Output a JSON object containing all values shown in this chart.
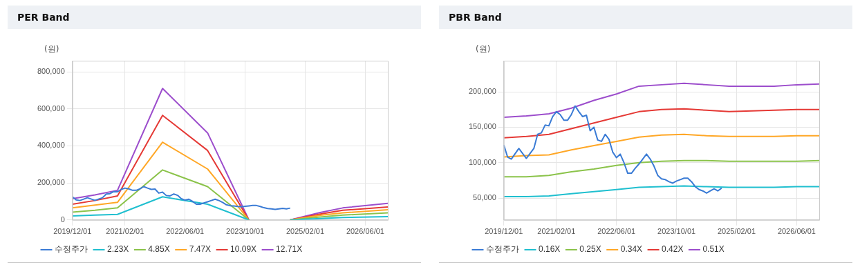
{
  "chart_data": [
    {
      "type": "line",
      "title": "PER Band",
      "ylabel": "(원)",
      "xlim": [
        "2019-12",
        "2026-12"
      ],
      "xticks": [
        {
          "value": "2019-12",
          "label": "2019/12/01"
        },
        {
          "value": "2021-02",
          "label": "2021/02/01"
        },
        {
          "value": "2022-06",
          "label": "2022/06/01"
        },
        {
          "value": "2023-10",
          "label": "2023/10/01"
        },
        {
          "value": "2025-02",
          "label": "2025/02/01"
        },
        {
          "value": "2026-06",
          "label": "2026/06/01"
        }
      ],
      "ylim": [
        0,
        860000
      ],
      "yticks": [
        {
          "value": 0,
          "label": "0"
        },
        {
          "value": 200000,
          "label": "200,000"
        },
        {
          "value": 400000,
          "label": "400,000"
        },
        {
          "value": 600000,
          "label": "600,000"
        },
        {
          "value": 800000,
          "label": "800,000"
        }
      ],
      "grid": true,
      "legend": "bottom",
      "marker": "none",
      "line_style": "solid",
      "series": [
        {
          "name": "수정주가",
          "color": "#3a7bd5",
          "x": [
            "2019-12",
            "2020-01",
            "2020-02",
            "2020-04",
            "2020-06",
            "2020-08",
            "2020-09",
            "2020-10",
            "2020-11",
            "2020-12",
            "2021-01",
            "2021-02",
            "2021-03",
            "2021-04",
            "2021-05",
            "2021-06",
            "2021-07",
            "2021-08",
            "2021-09",
            "2021-10",
            "2021-11",
            "2021-12",
            "2022-01",
            "2022-02",
            "2022-03",
            "2022-04",
            "2022-05",
            "2022-06",
            "2022-07",
            "2022-08",
            "2022-09",
            "2022-10",
            "2022-11",
            "2022-12",
            "2023-01",
            "2023-02",
            "2023-03",
            "2023-04",
            "2023-05",
            "2023-06",
            "2023-07",
            "2023-08",
            "2023-09",
            "2023-10",
            "2023-11",
            "2023-12",
            "2024-01",
            "2024-02",
            "2024-03",
            "2024-04",
            "2024-05",
            "2024-06",
            "2024-07",
            "2024-08",
            "2024-09",
            "2024-10"
          ],
          "values": [
            125000,
            108000,
            105000,
            120000,
            106000,
            120000,
            140000,
            142000,
            153000,
            152000,
            165000,
            172000,
            168000,
            160000,
            160000,
            168000,
            180000,
            172000,
            165000,
            167000,
            145000,
            150000,
            132000,
            130000,
            140000,
            133000,
            115000,
            107000,
            112000,
            100000,
            85000,
            85000,
            92000,
            98000,
            105000,
            112000,
            105000,
            95000,
            82000,
            77000,
            76000,
            73000,
            71000,
            74000,
            76000,
            78000,
            78000,
            73000,
            66000,
            62000,
            60000,
            57000,
            60000,
            63000,
            60000,
            64000
          ]
        },
        {
          "name": "2.23X",
          "color": "#1fbfcf",
          "x": [
            "2019-12",
            "2020-06",
            "2020-12",
            "2021-12",
            "2022-12",
            "2023-11",
            "2024-04",
            "2024-10",
            "2025-06",
            "2025-12",
            "2026-12"
          ],
          "values": [
            22000,
            26000,
            30000,
            125000,
            85000,
            0,
            null,
            0,
            8000,
            13000,
            18000
          ]
        },
        {
          "name": "4.85X",
          "color": "#8bc34a",
          "x": [
            "2019-12",
            "2020-06",
            "2020-12",
            "2021-12",
            "2022-12",
            "2023-11",
            "2024-04",
            "2024-10",
            "2025-06",
            "2025-12",
            "2026-12"
          ],
          "values": [
            42000,
            52000,
            65000,
            270000,
            180000,
            0,
            null,
            0,
            16000,
            26000,
            38000
          ]
        },
        {
          "name": "7.47X",
          "color": "#ffa726",
          "x": [
            "2019-12",
            "2020-06",
            "2020-12",
            "2021-12",
            "2022-12",
            "2023-11",
            "2024-04",
            "2024-10",
            "2025-06",
            "2025-12",
            "2026-12"
          ],
          "values": [
            65000,
            80000,
            95000,
            420000,
            275000,
            0,
            null,
            0,
            25000,
            38000,
            55000
          ]
        },
        {
          "name": "10.09X",
          "color": "#e53935",
          "x": [
            "2019-12",
            "2020-06",
            "2020-12",
            "2021-12",
            "2022-12",
            "2023-11",
            "2024-04",
            "2024-10",
            "2025-06",
            "2025-12",
            "2026-12"
          ],
          "values": [
            85000,
            105000,
            130000,
            565000,
            375000,
            0,
            null,
            0,
            32000,
            52000,
            70000
          ]
        },
        {
          "name": "12.71X",
          "color": "#9c4dcc",
          "x": [
            "2019-12",
            "2020-06",
            "2020-12",
            "2021-12",
            "2022-12",
            "2023-11",
            "2024-04",
            "2024-10",
            "2025-06",
            "2025-12",
            "2026-12"
          ],
          "values": [
            115000,
            135000,
            160000,
            710000,
            470000,
            0,
            null,
            0,
            40000,
            65000,
            90000
          ]
        }
      ]
    },
    {
      "type": "line",
      "title": "PBR Band",
      "ylabel": "(원)",
      "xlim": [
        "2019-12",
        "2026-12"
      ],
      "xticks": [
        {
          "value": "2019-12",
          "label": "2019/12/01"
        },
        {
          "value": "2021-02",
          "label": "2021/02/01"
        },
        {
          "value": "2022-06",
          "label": "2022/06/01"
        },
        {
          "value": "2023-10",
          "label": "2023/10/01"
        },
        {
          "value": "2025-02",
          "label": "2025/02/01"
        },
        {
          "value": "2026-06",
          "label": "2026/06/01"
        }
      ],
      "ylim": [
        19000,
        244000
      ],
      "yticks": [
        {
          "value": 50000,
          "label": "50,000"
        },
        {
          "value": 100000,
          "label": "100,000"
        },
        {
          "value": 150000,
          "label": "150,000"
        },
        {
          "value": 200000,
          "label": "200,000"
        }
      ],
      "grid": true,
      "legend": "bottom",
      "marker": "none",
      "line_style": "solid",
      "series": [
        {
          "name": "수정주가",
          "color": "#3a7bd5",
          "x": [
            "2019-12",
            "2020-01",
            "2020-02",
            "2020-04",
            "2020-06",
            "2020-08",
            "2020-09",
            "2020-10",
            "2020-11",
            "2020-12",
            "2021-01",
            "2021-02",
            "2021-03",
            "2021-04",
            "2021-05",
            "2021-06",
            "2021-07",
            "2021-08",
            "2021-09",
            "2021-10",
            "2021-11",
            "2021-12",
            "2022-01",
            "2022-02",
            "2022-03",
            "2022-04",
            "2022-05",
            "2022-06",
            "2022-07",
            "2022-08",
            "2022-09",
            "2022-10",
            "2022-11",
            "2022-12",
            "2023-01",
            "2023-02",
            "2023-03",
            "2023-04",
            "2023-05",
            "2023-06",
            "2023-07",
            "2023-08",
            "2023-09",
            "2023-10",
            "2023-11",
            "2023-12",
            "2024-01",
            "2024-02",
            "2024-03",
            "2024-04",
            "2024-05",
            "2024-06",
            "2024-07",
            "2024-08",
            "2024-09",
            "2024-10"
          ],
          "values": [
            125000,
            108000,
            105000,
            120000,
            106000,
            120000,
            140000,
            142000,
            153000,
            152000,
            165000,
            172000,
            168000,
            160000,
            160000,
            168000,
            180000,
            172000,
            165000,
            167000,
            145000,
            150000,
            132000,
            130000,
            140000,
            133000,
            115000,
            107000,
            112000,
            100000,
            85000,
            85000,
            92000,
            98000,
            105000,
            112000,
            105000,
            95000,
            82000,
            77000,
            76000,
            73000,
            71000,
            74000,
            76000,
            78000,
            78000,
            73000,
            66000,
            62000,
            60000,
            57000,
            60000,
            63000,
            60000,
            64000
          ]
        },
        {
          "name": "0.16X",
          "color": "#1fbfcf",
          "x": [
            "2019-12",
            "2020-06",
            "2020-12",
            "2021-06",
            "2021-12",
            "2022-06",
            "2022-12",
            "2023-06",
            "2023-12",
            "2024-06",
            "2024-12",
            "2025-12",
            "2026-06",
            "2026-12"
          ],
          "values": [
            52000,
            52000,
            53000,
            56000,
            59000,
            62000,
            65000,
            66000,
            67000,
            66000,
            65000,
            65000,
            66000,
            66000
          ]
        },
        {
          "name": "0.25X",
          "color": "#8bc34a",
          "x": [
            "2019-12",
            "2020-06",
            "2020-12",
            "2021-06",
            "2021-12",
            "2022-06",
            "2022-12",
            "2023-06",
            "2023-12",
            "2024-06",
            "2024-12",
            "2025-12",
            "2026-06",
            "2026-12"
          ],
          "values": [
            80000,
            80000,
            82000,
            87000,
            91000,
            96000,
            100000,
            102000,
            103000,
            103000,
            102000,
            102000,
            102000,
            103000
          ]
        },
        {
          "name": "0.34X",
          "color": "#ffa726",
          "x": [
            "2019-12",
            "2020-06",
            "2020-12",
            "2021-06",
            "2021-12",
            "2022-06",
            "2022-12",
            "2023-06",
            "2023-12",
            "2024-06",
            "2024-12",
            "2025-12",
            "2026-06",
            "2026-12"
          ],
          "values": [
            108000,
            110000,
            111000,
            118000,
            124000,
            130000,
            136000,
            139000,
            140000,
            138000,
            137000,
            137000,
            138000,
            138000
          ]
        },
        {
          "name": "0.42X",
          "color": "#e53935",
          "x": [
            "2019-12",
            "2020-06",
            "2020-12",
            "2021-06",
            "2021-12",
            "2022-06",
            "2022-12",
            "2023-06",
            "2023-12",
            "2024-06",
            "2024-12",
            "2025-12",
            "2026-06",
            "2026-12"
          ],
          "values": [
            135000,
            137000,
            140000,
            148000,
            156000,
            164000,
            172000,
            175000,
            176000,
            174000,
            172000,
            174000,
            175000,
            175000
          ]
        },
        {
          "name": "0.51X",
          "color": "#9c4dcc",
          "x": [
            "2019-12",
            "2020-06",
            "2020-12",
            "2021-06",
            "2021-12",
            "2022-06",
            "2022-12",
            "2023-06",
            "2023-12",
            "2024-06",
            "2024-12",
            "2025-12",
            "2026-06",
            "2026-12"
          ],
          "values": [
            164000,
            166000,
            169000,
            177000,
            188000,
            197000,
            208000,
            210000,
            212000,
            210000,
            208000,
            208000,
            210000,
            211000
          ]
        }
      ]
    }
  ]
}
